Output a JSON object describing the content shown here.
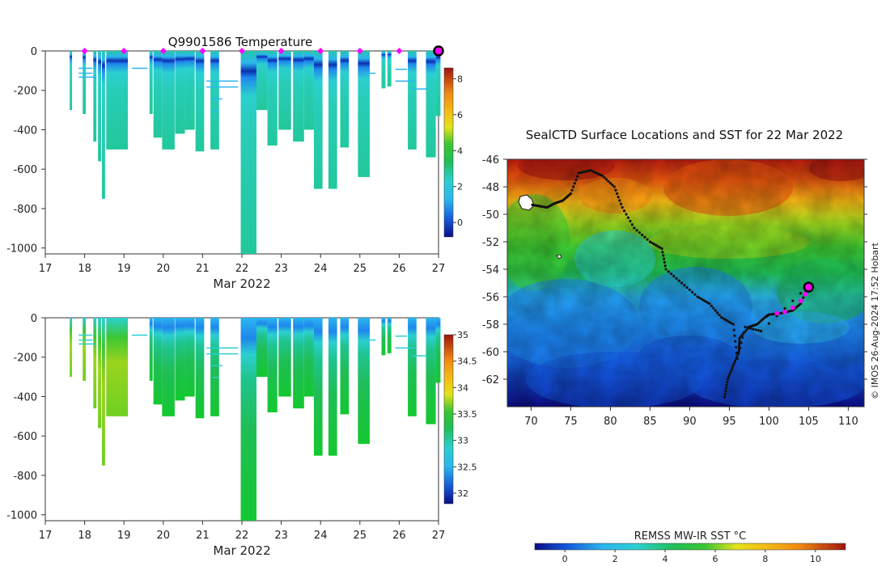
{
  "colors": {
    "palette": [
      "#0c0c86",
      "#0a2fb0",
      "#1456d8",
      "#1e86ec",
      "#2bb6ee",
      "#2bcfd0",
      "#1fc48e",
      "#1fbe55",
      "#3cc732",
      "#9ad41e",
      "#e6e21a",
      "#f5b815",
      "#f08a12",
      "#e0520e",
      "#c4200e",
      "#a01410"
    ],
    "marker": "#ff00ff",
    "track": "#111111"
  },
  "chart_data": [
    {
      "id": "temperature-section",
      "type": "heatmap",
      "title": "Q9901586  Temperature",
      "xlabel": "Mar 2022",
      "xlim": [
        17,
        27
      ],
      "ylim": [
        -1030,
        0
      ],
      "xticks": [
        "17",
        "18",
        "19",
        "20",
        "21",
        "22",
        "23",
        "24",
        "25",
        "26",
        "27"
      ],
      "yticks": [
        "0",
        "-200",
        "-400",
        "-600",
        "-800",
        "-1000"
      ],
      "marker_days": [
        18,
        19,
        20,
        21,
        22,
        23,
        24,
        25,
        26
      ],
      "current_day": 27,
      "colorbar": {
        "min": -0.8,
        "max": 8.6,
        "ticks": [
          "0",
          "2",
          "4",
          "6",
          "8"
        ]
      },
      "profiles": [
        {
          "x": 17.62,
          "w": 0.06,
          "bottom": -300
        },
        {
          "x": 17.95,
          "w": 0.08,
          "bottom": -320
        },
        {
          "x": 18.22,
          "w": 0.08,
          "bottom": -460
        },
        {
          "x": 18.34,
          "w": 0.08,
          "bottom": -560
        },
        {
          "x": 18.44,
          "w": 0.08,
          "bottom": -750
        },
        {
          "x": 18.55,
          "w": 0.55,
          "bottom": -500
        },
        {
          "x": 19.65,
          "w": 0.08,
          "bottom": -320
        },
        {
          "x": 19.75,
          "w": 0.22,
          "bottom": -440
        },
        {
          "x": 19.97,
          "w": 0.32,
          "bottom": -500
        },
        {
          "x": 20.3,
          "w": 0.25,
          "bottom": -420
        },
        {
          "x": 20.55,
          "w": 0.25,
          "bottom": -400
        },
        {
          "x": 20.82,
          "w": 0.22,
          "bottom": -510
        },
        {
          "x": 21.2,
          "w": 0.22,
          "bottom": -500
        },
        {
          "x": 21.97,
          "w": 0.4,
          "bottom": -1030
        },
        {
          "x": 22.37,
          "w": 0.28,
          "bottom": -300
        },
        {
          "x": 22.65,
          "w": 0.25,
          "bottom": -480
        },
        {
          "x": 22.93,
          "w": 0.32,
          "bottom": -400
        },
        {
          "x": 23.3,
          "w": 0.28,
          "bottom": -460
        },
        {
          "x": 23.58,
          "w": 0.25,
          "bottom": -400
        },
        {
          "x": 23.83,
          "w": 0.22,
          "bottom": -700
        },
        {
          "x": 24.2,
          "w": 0.22,
          "bottom": -700
        },
        {
          "x": 24.5,
          "w": 0.22,
          "bottom": -490
        },
        {
          "x": 24.95,
          "w": 0.3,
          "bottom": -640
        },
        {
          "x": 25.55,
          "w": 0.1,
          "bottom": -190
        },
        {
          "x": 25.7,
          "w": 0.1,
          "bottom": -180
        },
        {
          "x": 26.22,
          "w": 0.22,
          "bottom": -500
        },
        {
          "x": 26.68,
          "w": 0.25,
          "bottom": -540
        },
        {
          "x": 26.93,
          "w": 0.12,
          "bottom": -330
        }
      ]
    },
    {
      "id": "salinity-section",
      "type": "heatmap",
      "title": "",
      "xlabel": "Mar 2022",
      "xlim": [
        17,
        27
      ],
      "ylim": [
        -1030,
        0
      ],
      "xticks": [
        "17",
        "18",
        "19",
        "20",
        "21",
        "22",
        "23",
        "24",
        "25",
        "26",
        "27"
      ],
      "yticks": [
        "0",
        "-200",
        "-400",
        "-600",
        "-800",
        "-1000"
      ],
      "colorbar": {
        "min": 31.8,
        "max": 35.0,
        "ticks": [
          "32",
          "32.5",
          "33",
          "33.5",
          "34",
          "34.5",
          "35"
        ]
      }
    },
    {
      "id": "sst-map",
      "type": "heatmap",
      "title": "SealCTD Surface Locations and SST for 22 Mar 2022",
      "xlim": [
        67,
        112
      ],
      "ylim": [
        -64,
        -46
      ],
      "xticks": [
        "70",
        "75",
        "80",
        "85",
        "90",
        "95",
        "100",
        "105",
        "110"
      ],
      "yticks": [
        "-46",
        "-48",
        "-50",
        "-52",
        "-54",
        "-56",
        "-58",
        "-60",
        "-62"
      ],
      "credit": "© IMOS 26-Aug-2024 17:52 Hobart",
      "colorbar": {
        "label": "REMSS MW-IR SST °C",
        "min": -1.2,
        "max": 11.2,
        "ticks": [
          "0",
          "2",
          "4",
          "6",
          "8",
          "10"
        ]
      },
      "track": [
        [
          94.4,
          -63.3
        ],
        [
          94.8,
          -62
        ],
        [
          95.5,
          -61
        ],
        [
          96.2,
          -60
        ],
        [
          96.3,
          -59
        ],
        [
          97.5,
          -58.2
        ],
        [
          98.5,
          -58
        ],
        [
          99.5,
          -57.5
        ],
        [
          100,
          -57.3
        ],
        [
          101.5,
          -57.2
        ],
        [
          103,
          -57
        ],
        [
          104,
          -56.5
        ],
        [
          105,
          -55.2
        ],
        [
          99,
          -58.5
        ],
        [
          97,
          -58.2
        ],
        [
          96,
          -60.5
        ],
        [
          95.5,
          -58
        ],
        [
          94,
          -57.5
        ],
        [
          92.5,
          -56.5
        ],
        [
          91,
          -56
        ],
        [
          89,
          -55
        ],
        [
          87,
          -54
        ],
        [
          86.5,
          -52.5
        ],
        [
          85,
          -52
        ],
        [
          83,
          -51
        ],
        [
          81.5,
          -49.5
        ],
        [
          80.5,
          -48
        ],
        [
          79,
          -47.2
        ],
        [
          77.5,
          -46.8
        ],
        [
          76,
          -47
        ],
        [
          75,
          -48.5
        ],
        [
          74,
          -49
        ],
        [
          73,
          -49.2
        ],
        [
          72,
          -49.5
        ],
        [
          71,
          -49.4
        ],
        [
          70,
          -49.3
        ]
      ],
      "recent_track": [
        [
          101,
          -57.2
        ],
        [
          102,
          -57.1
        ],
        [
          103,
          -56.8
        ],
        [
          104,
          -56.3
        ],
        [
          104.6,
          -55.8
        ],
        [
          105,
          -55.3
        ]
      ],
      "current_position": [
        105,
        -55.3
      ]
    }
  ]
}
